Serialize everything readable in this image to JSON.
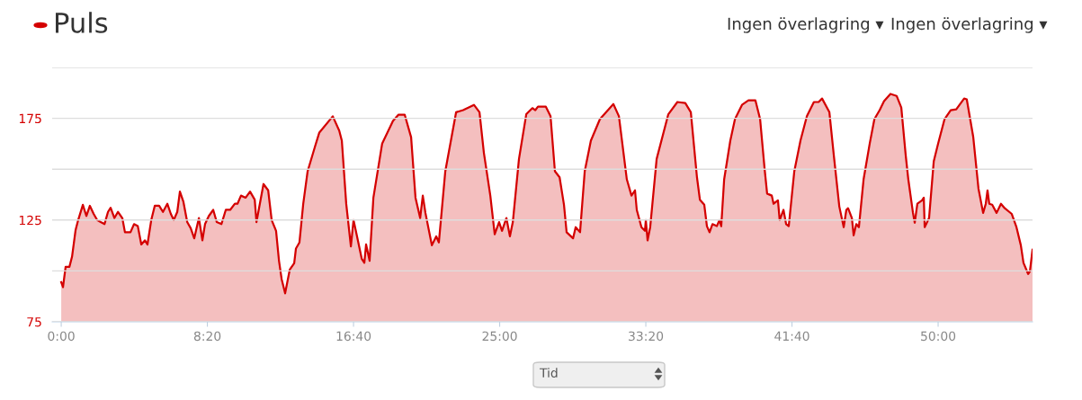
{
  "chart_data": {
    "type": "area",
    "title": "Puls",
    "annotations": [
      "Ingen överlagring ▾",
      "Ingen överlagring ▾",
      "Tid"
    ],
    "xlim": [
      -31,
      3323
    ],
    "xticks": [
      {
        "value": 0,
        "label": "0:00"
      },
      {
        "value": 500,
        "label": "8:20"
      },
      {
        "value": 1000,
        "label": "16:40"
      },
      {
        "value": 1500,
        "label": "25:00"
      },
      {
        "value": 2000,
        "label": "33:20"
      },
      {
        "value": 2500,
        "label": "41:40"
      },
      {
        "value": 3000,
        "label": "50:00"
      }
    ],
    "ylim": [
      75,
      200
    ],
    "yticks": [
      75,
      {
        "value": 100,
        "label": null
      },
      125,
      {
        "value": 150,
        "label": null
      },
      175,
      {
        "value": 200,
        "label": null
      }
    ],
    "grid": "y",
    "legend": false,
    "series": [
      {
        "color": "#d40000",
        "x": [
          0,
          6,
          15,
          28,
          37,
          49,
          58,
          74,
          86,
          98,
          111,
          123,
          135,
          148,
          160,
          169,
          182,
          194,
          209,
          218,
          237,
          249,
          262,
          274,
          286,
          295,
          308,
          320,
          335,
          348,
          363,
          375,
          385,
          397,
          406,
          418,
          431,
          443,
          455,
          471,
          483,
          492,
          505,
          520,
          532,
          548,
          563,
          578,
          594,
          603,
          615,
          631,
          646,
          662,
          668,
          692,
          708,
          720,
          735,
          745,
          754,
          766,
          782,
          797,
          803,
          815,
          828,
          843,
          868,
          883,
          929,
          951,
          960,
          975,
          991,
          1000,
          1012,
          1028,
          1037,
          1043,
          1055,
          1068,
          1098,
          1135,
          1154,
          1175,
          1197,
          1212,
          1228,
          1237,
          1246,
          1268,
          1283,
          1292,
          1314,
          1351,
          1375,
          1412,
          1431,
          1446,
          1468,
          1483,
          1498,
          1508,
          1523,
          1535,
          1545,
          1566,
          1591,
          1612,
          1622,
          1631,
          1658,
          1674,
          1689,
          1705,
          1720,
          1729,
          1751,
          1760,
          1775,
          1791,
          1812,
          1843,
          1889,
          1908,
          1935,
          1951,
          1963,
          1969,
          1985,
          1997,
          2000,
          2006,
          2015,
          2037,
          2077,
          2108,
          2135,
          2154,
          2175,
          2185,
          2200,
          2209,
          2218,
          2228,
          2243,
          2252,
          2258,
          2268,
          2289,
          2305,
          2329,
          2351,
          2375,
          2391,
          2406,
          2415,
          2431,
          2437,
          2452,
          2458,
          2471,
          2480,
          2489,
          2508,
          2529,
          2551,
          2575,
          2591,
          2603,
          2628,
          2643,
          2662,
          2677,
          2686,
          2692,
          2705,
          2711,
          2720,
          2729,
          2745,
          2766,
          2782,
          2800,
          2815,
          2837,
          2858,
          2874,
          2889,
          2898,
          2914,
          2920,
          2929,
          2945,
          2951,
          2954,
          2969,
          2985,
          3000,
          3022,
          3043,
          3062,
          3089,
          3098,
          3120,
          3138,
          3154,
          3163,
          3169,
          3175,
          3185,
          3200,
          3215,
          3228,
          3252,
          3268,
          3283,
          3292,
          3308,
          3314,
          3323
        ],
        "values": [
          94.5,
          92,
          102,
          102,
          107,
          120,
          125,
          132.5,
          127,
          132,
          128,
          125,
          124,
          123,
          129,
          131,
          126,
          129,
          126,
          119,
          119,
          123,
          122,
          113,
          115,
          113,
          125,
          132,
          132,
          129,
          133,
          128,
          125,
          129,
          139,
          134,
          124,
          121,
          116,
          126,
          115,
          123,
          127,
          130,
          124,
          123,
          130,
          130,
          133,
          133,
          137,
          136,
          139,
          135,
          124,
          142.7,
          139.6,
          125,
          119.7,
          105,
          96,
          89,
          100.7,
          103.8,
          111,
          114,
          133,
          149,
          161,
          168,
          176,
          169,
          164,
          133,
          112,
          125,
          117,
          106,
          104,
          113,
          105,
          136,
          162.6,
          173.7,
          176.8,
          176.8,
          165.7,
          136,
          126,
          137,
          128.5,
          112.6,
          117,
          114,
          149,
          178,
          179,
          181.6,
          178,
          158,
          137,
          118,
          124,
          119.7,
          126,
          117,
          124,
          155,
          177,
          180,
          179,
          180.7,
          180.7,
          176,
          149,
          146,
          132.5,
          119,
          116,
          121.5,
          119,
          149,
          164,
          174.6,
          182,
          176,
          145,
          137,
          139.6,
          130,
          121.5,
          119.7,
          125,
          115,
          121.5,
          155,
          177,
          183,
          182.5,
          178,
          146,
          135,
          132.5,
          122,
          119,
          123,
          122,
          125,
          122,
          145,
          164,
          174.6,
          181.6,
          183.8,
          183.8,
          174.6,
          150.7,
          138,
          137,
          133,
          134.7,
          125,
          130,
          123,
          122,
          149,
          164,
          176,
          183,
          183,
          184.7,
          178,
          157,
          131.6,
          121.5,
          130,
          130.8,
          126,
          117.5,
          123,
          121.5,
          145,
          162.6,
          174.6,
          179,
          183.4,
          187,
          186,
          180.3,
          157,
          145,
          128.5,
          123.7,
          133,
          134.7,
          136,
          121.5,
          126,
          153.8,
          162.6,
          174.6,
          179,
          179.4,
          184.7,
          184.3,
          166,
          140.5,
          128.5,
          133,
          139.6,
          133,
          132.5,
          128.5,
          133,
          130.8,
          128,
          121.5,
          112.6,
          104,
          98.5,
          99.8,
          110.4
        ]
      }
    ]
  }
}
